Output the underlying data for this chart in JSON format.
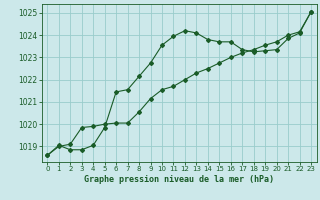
{
  "title": "Graphe pression niveau de la mer (hPa)",
  "bg_color": "#cce8ea",
  "grid_color": "#99cccc",
  "line_color": "#1a5c28",
  "xlim": [
    -0.5,
    23.5
  ],
  "ylim": [
    1018.3,
    1025.4
  ],
  "xlabel_fontsize": 6.0,
  "ytick_fontsize": 5.5,
  "xtick_fontsize": 5.0,
  "yticks": [
    1019,
    1020,
    1021,
    1022,
    1023,
    1024,
    1025
  ],
  "xticks": [
    0,
    1,
    2,
    3,
    4,
    5,
    6,
    7,
    8,
    9,
    10,
    11,
    12,
    13,
    14,
    15,
    16,
    17,
    18,
    19,
    20,
    21,
    22,
    23
  ],
  "line1_x": [
    0,
    1,
    2,
    3,
    4,
    5,
    6,
    7,
    8,
    9,
    10,
    11,
    12,
    13,
    14,
    15,
    16,
    17,
    18,
    19,
    20,
    21,
    22,
    23
  ],
  "line1_y": [
    1018.6,
    1019.05,
    1018.85,
    1018.85,
    1019.05,
    1019.85,
    1021.45,
    1021.55,
    1022.15,
    1022.75,
    1023.55,
    1023.95,
    1024.2,
    1024.1,
    1023.8,
    1023.7,
    1023.7,
    1023.35,
    1023.25,
    1023.3,
    1023.35,
    1023.85,
    1024.1,
    1025.05
  ],
  "line2_x": [
    0,
    1,
    2,
    3,
    4,
    5,
    6,
    7,
    8,
    9,
    10,
    11,
    12,
    13,
    14,
    15,
    16,
    17,
    18,
    19,
    20,
    21,
    22,
    23
  ],
  "line2_y": [
    1018.6,
    1019.0,
    1019.1,
    1019.85,
    1019.9,
    1020.0,
    1020.05,
    1020.05,
    1020.55,
    1021.15,
    1021.55,
    1021.7,
    1022.0,
    1022.3,
    1022.5,
    1022.75,
    1023.0,
    1023.2,
    1023.35,
    1023.55,
    1023.7,
    1024.0,
    1024.15,
    1025.05
  ]
}
